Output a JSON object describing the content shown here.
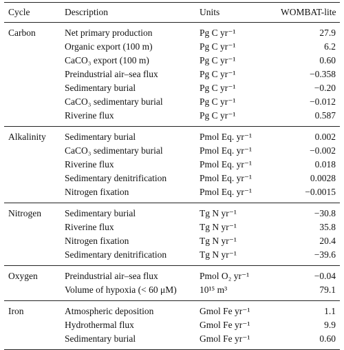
{
  "table": {
    "columns": [
      "Cycle",
      "Description",
      "Units",
      "WOMBAT-lite"
    ],
    "groups": [
      {
        "cycle": "Carbon",
        "rows": [
          [
            "Net primary production",
            "Pg C yr⁻¹",
            "27.9"
          ],
          [
            "Organic export (100 m)",
            "Pg C yr⁻¹",
            "6.2"
          ],
          [
            "CaCO₃ export (100 m)",
            "Pg C yr⁻¹",
            "0.60"
          ],
          [
            "Preindustrial air–sea flux",
            "Pg C yr⁻¹",
            "−0.358"
          ],
          [
            "Sedimentary burial",
            "Pg C yr⁻¹",
            "−0.20"
          ],
          [
            "CaCO₃ sedimentary burial",
            "Pg C yr⁻¹",
            "−0.012"
          ],
          [
            "Riverine flux",
            "Pg C yr⁻¹",
            "0.587"
          ]
        ]
      },
      {
        "cycle": "Alkalinity",
        "rows": [
          [
            "Sedimentary burial",
            "Pmol Eq. yr⁻¹",
            "0.002"
          ],
          [
            "CaCO₃ sedimentary burial",
            "Pmol Eq. yr⁻¹",
            "−0.002"
          ],
          [
            "Riverine flux",
            "Pmol Eq. yr⁻¹",
            "0.018"
          ],
          [
            "Sedimentary denitrification",
            "Pmol Eq. yr⁻¹",
            "0.0028"
          ],
          [
            "Nitrogen fixation",
            "Pmol Eq. yr⁻¹",
            "−0.0015"
          ]
        ]
      },
      {
        "cycle": "Nitrogen",
        "rows": [
          [
            "Sedimentary burial",
            "Tg N yr⁻¹",
            "−30.8"
          ],
          [
            "Riverine flux",
            "Tg N yr⁻¹",
            "35.8"
          ],
          [
            "Nitrogen fixation",
            "Tg N yr⁻¹",
            "20.4"
          ],
          [
            "Sedimentary denitrification",
            "Tg N yr⁻¹",
            "−39.6"
          ]
        ]
      },
      {
        "cycle": "Oxygen",
        "rows": [
          [
            "Preindustrial air–sea flux",
            "Pmol O₂ yr⁻¹",
            "−0.04"
          ],
          [
            "Volume of hypoxia (< 60 μM)",
            "10¹⁵ m³",
            "79.1"
          ]
        ]
      },
      {
        "cycle": "Iron",
        "rows": [
          [
            "Atmospheric deposition",
            "Gmol Fe yr⁻¹",
            "1.1"
          ],
          [
            "Hydrothermal flux",
            "Gmol Fe yr⁻¹",
            "9.9"
          ],
          [
            "Sedimentary burial",
            "Gmol Fe yr⁻¹",
            "0.60"
          ]
        ]
      }
    ]
  }
}
